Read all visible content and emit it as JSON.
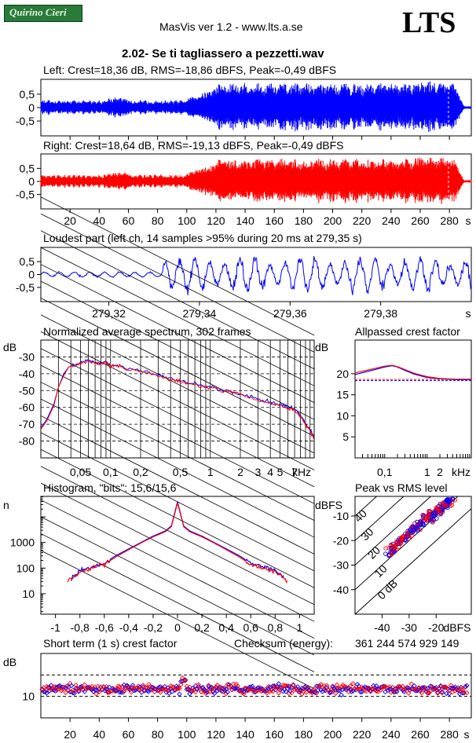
{
  "header": {
    "badge": "Quirino Cieri",
    "app_line": "MasVis ver 1.2 - www.lts.a.se",
    "logo": "LTS",
    "track_title": "2.02- Se ti tagliassero a pezzetti.wav"
  },
  "colors": {
    "left": "#0000ff",
    "right": "#ff0000",
    "axis": "#000000"
  },
  "chart_data": [
    {
      "id": "left",
      "type": "line",
      "title": "Left: Crest=18,36 dB, RMS=-18,86 dBFS, Peak=-0,49 dBFS",
      "series": [
        {
          "values": []
        }
      ],
      "yticks": [
        "0,5",
        "0",
        "-0,5"
      ],
      "ylim": [
        -1,
        1
      ],
      "xlim": [
        0,
        295
      ]
    },
    {
      "id": "right",
      "type": "line",
      "title": "Right: Crest=18,64 dB, RMS=-19,13 dBFS, Peak=-0,49 dBFS",
      "series": [
        {
          "values": []
        }
      ],
      "yticks": [
        "0,5",
        "0",
        "-0,5"
      ],
      "xticks": [
        "20",
        "40",
        "60",
        "80",
        "100",
        "120",
        "140",
        "160",
        "180",
        "200",
        "220",
        "240",
        "260",
        "280",
        "s"
      ],
      "ylim": [
        -1,
        1
      ],
      "xlim": [
        0,
        295
      ]
    },
    {
      "id": "loudest",
      "type": "line",
      "title": "Loudest part (left  ch, 14 samples >95% during 20 ms at 279,35 s)",
      "yticks": [
        "0,5",
        "0",
        "-0,5"
      ],
      "xticks": [
        "279,32",
        "279,34",
        "279,36",
        "279,38",
        "s"
      ],
      "xlim": [
        279.305,
        279.4
      ],
      "ylim": [
        -1,
        1
      ]
    },
    {
      "id": "spectrum",
      "type": "line",
      "title": "Normalized average spectrum, 302 frames",
      "ylabel": "dB",
      "yticks": [
        "-30",
        "-40",
        "-50",
        "-60",
        "-70",
        "-80"
      ],
      "xticks": [
        "0,05",
        "0,1",
        "0,2",
        "0,5",
        "1",
        "2",
        "3",
        "4",
        "5",
        "7",
        "kHz"
      ],
      "xscale": "log",
      "xlim_khz": [
        0.02,
        11
      ],
      "ylim": [
        -90,
        -20
      ],
      "series": [
        {
          "name": "left",
          "points": [
            [
              0.02,
              -72
            ],
            [
              0.023,
              -67
            ],
            [
              0.027,
              -58
            ],
            [
              0.03,
              -48
            ],
            [
              0.034,
              -40
            ],
            [
              0.038,
              -36
            ],
            [
              0.042,
              -35
            ],
            [
              0.05,
              -33.5
            ],
            [
              0.06,
              -32
            ],
            [
              0.07,
              -33
            ],
            [
              0.08,
              -34
            ],
            [
              0.09,
              -33
            ],
            [
              0.1,
              -35
            ],
            [
              0.12,
              -35
            ],
            [
              0.15,
              -37
            ],
            [
              0.2,
              -38
            ],
            [
              0.3,
              -41
            ],
            [
              0.4,
              -43
            ],
            [
              0.5,
              -44
            ],
            [
              0.7,
              -46
            ],
            [
              1,
              -48
            ],
            [
              1.5,
              -50
            ],
            [
              2,
              -52
            ],
            [
              3,
              -55
            ],
            [
              4,
              -57
            ],
            [
              5,
              -58
            ],
            [
              6,
              -60
            ],
            [
              7,
              -61
            ],
            [
              8,
              -65
            ],
            [
              9,
              -70
            ],
            [
              10,
              -73
            ],
            [
              11,
              -78
            ]
          ]
        },
        {
          "name": "right",
          "points": [
            [
              0.02,
              -73
            ],
            [
              0.023,
              -68
            ],
            [
              0.027,
              -59
            ],
            [
              0.03,
              -48
            ],
            [
              0.034,
              -41
            ],
            [
              0.038,
              -36
            ],
            [
              0.042,
              -35
            ],
            [
              0.05,
              -34
            ],
            [
              0.06,
              -32.5
            ],
            [
              0.07,
              -33.5
            ],
            [
              0.08,
              -34
            ],
            [
              0.09,
              -33.5
            ],
            [
              0.1,
              -35.5
            ],
            [
              0.12,
              -35.5
            ],
            [
              0.15,
              -37.5
            ],
            [
              0.2,
              -38.5
            ],
            [
              0.3,
              -41.5
            ],
            [
              0.4,
              -43.5
            ],
            [
              0.5,
              -44.5
            ],
            [
              0.7,
              -46.5
            ],
            [
              1,
              -48.5
            ],
            [
              1.5,
              -50.5
            ],
            [
              2,
              -52.5
            ],
            [
              3,
              -55.5
            ],
            [
              4,
              -57.5
            ],
            [
              5,
              -58.5
            ],
            [
              6,
              -60.5
            ],
            [
              7,
              -61.5
            ],
            [
              8,
              -65.5
            ],
            [
              9,
              -70.5
            ],
            [
              10,
              -74
            ],
            [
              11,
              -79
            ]
          ]
        }
      ]
    },
    {
      "id": "allpass",
      "type": "line",
      "title": "Allpassed crest factor",
      "ylabel": "dB",
      "yticks": [
        "20",
        "15",
        "10",
        "5"
      ],
      "xticks": [
        "0,1",
        "1",
        "2",
        "kHz"
      ],
      "xscale": "log",
      "xlim_khz": [
        0.02,
        11
      ],
      "ylim": [
        0,
        28
      ],
      "reference_levels": {
        "left": 18.36,
        "right": 18.64
      },
      "series": [
        {
          "name": "left",
          "points": [
            [
              0.02,
              19.8
            ],
            [
              0.05,
              20.8
            ],
            [
              0.1,
              21.6
            ],
            [
              0.15,
              21.9
            ],
            [
              0.2,
              21.6
            ],
            [
              0.3,
              20.8
            ],
            [
              0.5,
              19.9
            ],
            [
              1,
              19.1
            ],
            [
              2,
              18.8
            ],
            [
              5,
              18.6
            ],
            [
              11,
              18.6
            ]
          ]
        },
        {
          "name": "right",
          "points": [
            [
              0.02,
              20.2
            ],
            [
              0.05,
              21.1
            ],
            [
              0.1,
              21.8
            ],
            [
              0.15,
              22.0
            ],
            [
              0.2,
              21.7
            ],
            [
              0.3,
              21.0
            ],
            [
              0.5,
              20.1
            ],
            [
              1,
              19.3
            ],
            [
              2,
              18.9
            ],
            [
              5,
              18.7
            ],
            [
              11,
              18.7
            ]
          ]
        }
      ]
    },
    {
      "id": "histogram",
      "type": "line",
      "title": "Histogram, \"bits\": 15,6/15,6",
      "ylabel": "n",
      "yticks": [
        "1000",
        "100",
        "10"
      ],
      "xticks": [
        "-1",
        "-0,8",
        "-0,6",
        "-0,4",
        "-0,2",
        "0",
        "0,2",
        "0,4",
        "0,6",
        "0,8",
        "1"
      ],
      "yscale": "log",
      "xlim": [
        -1.12,
        1.12
      ],
      "ylim_log10": [
        0.2,
        4.8
      ],
      "series": [
        {
          "name": "left",
          "points": [
            [
              -0.87,
              1.6
            ],
            [
              -0.8,
              1.9
            ],
            [
              -0.7,
              2.05
            ],
            [
              -0.6,
              2.2
            ],
            [
              -0.5,
              2.5
            ],
            [
              -0.4,
              2.75
            ],
            [
              -0.3,
              3.0
            ],
            [
              -0.2,
              3.25
            ],
            [
              -0.1,
              3.45
            ],
            [
              -0.05,
              3.65
            ],
            [
              0,
              4.6
            ],
            [
              0.05,
              3.65
            ],
            [
              0.1,
              3.45
            ],
            [
              0.2,
              3.25
            ],
            [
              0.3,
              3.0
            ],
            [
              0.4,
              2.75
            ],
            [
              0.5,
              2.5
            ],
            [
              0.6,
              2.2
            ],
            [
              0.7,
              2.05
            ],
            [
              0.8,
              1.9
            ],
            [
              0.87,
              1.6
            ]
          ]
        },
        {
          "name": "right",
          "points": [
            [
              -0.9,
              1.5
            ],
            [
              -0.8,
              1.85
            ],
            [
              -0.7,
              2.0
            ],
            [
              -0.6,
              2.15
            ],
            [
              -0.5,
              2.45
            ],
            [
              -0.4,
              2.72
            ],
            [
              -0.3,
              2.98
            ],
            [
              -0.2,
              3.22
            ],
            [
              -0.1,
              3.42
            ],
            [
              -0.05,
              3.62
            ],
            [
              0,
              4.55
            ],
            [
              0.05,
              3.62
            ],
            [
              0.1,
              3.42
            ],
            [
              0.2,
              3.22
            ],
            [
              0.3,
              2.98
            ],
            [
              0.4,
              2.72
            ],
            [
              0.5,
              2.45
            ],
            [
              0.6,
              2.15
            ],
            [
              0.7,
              2.0
            ],
            [
              0.8,
              1.85
            ],
            [
              0.9,
              1.5
            ]
          ]
        }
      ]
    },
    {
      "id": "peak_vs_rms",
      "type": "scatter",
      "title": "Peak vs RMS level",
      "ylabel": "dBFS",
      "xlabel": "dBFS",
      "yticks": [
        "-10",
        "-20",
        "-30",
        "-40"
      ],
      "xticks": [
        "-40",
        "-30",
        "-20"
      ],
      "diagonal_labels": [
        "40",
        "30",
        "20",
        "10",
        "0 dB"
      ],
      "xlim": [
        -50,
        -7
      ],
      "ylim": [
        -50,
        -2
      ]
    },
    {
      "id": "short_term_crest",
      "type": "scatter",
      "title": "Short term (1 s) crest factor",
      "ylabel": "dB",
      "yticks": [
        "10"
      ],
      "xticks": [
        "20",
        "40",
        "60",
        "80",
        "100",
        "120",
        "140",
        "160",
        "180",
        "200",
        "220",
        "240",
        "260",
        "280",
        "s"
      ],
      "xlim": [
        0,
        295
      ],
      "ylim": [
        0,
        30
      ],
      "reference_levels": [
        10,
        20
      ]
    }
  ],
  "checksum": {
    "label": "Checksum (energy):",
    "value": "361 244 574 929 149"
  }
}
